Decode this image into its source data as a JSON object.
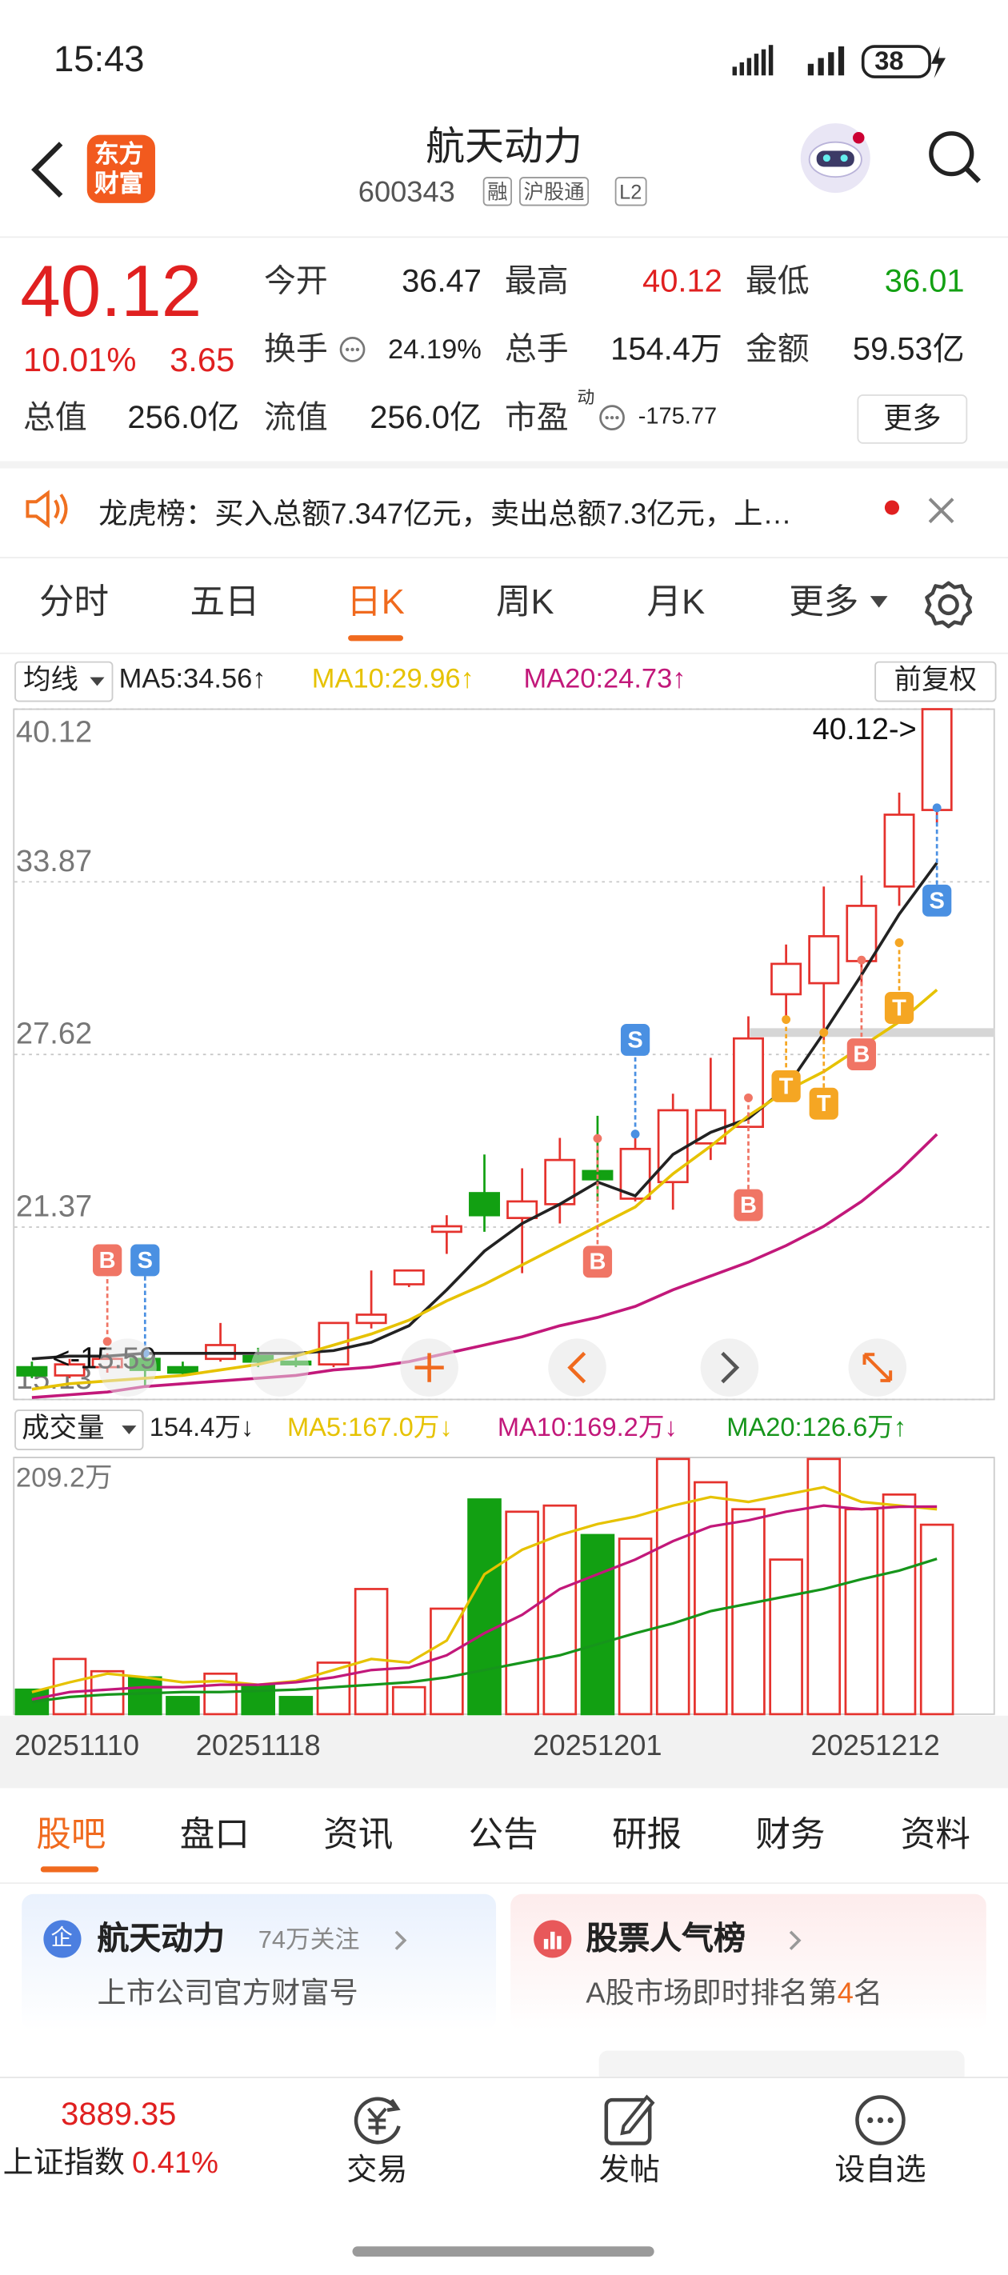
{
  "status_bar": {
    "time": "15:43",
    "battery": "38"
  },
  "header": {
    "logo": [
      "东方",
      "财富"
    ],
    "title": "航天动力",
    "code": "600343",
    "tags": [
      "融",
      "沪股通",
      "L2"
    ]
  },
  "quote": {
    "price": "40.12",
    "change_pct": "10.01%",
    "change": "3.65",
    "fields": [
      {
        "label": "今开",
        "value": "36.47"
      },
      {
        "label": "最高",
        "value": "40.12"
      },
      {
        "label": "最低",
        "value": "36.01"
      },
      {
        "label": "换手",
        "value": "24.19%"
      },
      {
        "label": "总手",
        "value": "154.4万"
      },
      {
        "label": "金额",
        "value": "59.53亿"
      },
      {
        "label": "总值",
        "value": "256.0亿"
      },
      {
        "label": "流值",
        "value": "256.0亿"
      },
      {
        "label": "市盈",
        "value": "-175.77"
      }
    ],
    "pe_sup": "动",
    "more": "更多"
  },
  "notice": "龙虎榜：买入总额7.347亿元，卖出总额7.3亿元，上…",
  "period_tabs": [
    "分时",
    "五日",
    "日K",
    "周K",
    "月K",
    "更多"
  ],
  "kline": {
    "type": "candlestick",
    "ma_selector": "均线",
    "adjust": "前复权",
    "dates": [
      "20251110",
      null,
      null,
      null,
      null,
      null,
      "20251118",
      null,
      null,
      null,
      null,
      null,
      null,
      null,
      null,
      "20251201",
      null,
      null,
      null,
      null,
      null,
      null,
      null,
      null,
      "20251212"
    ],
    "open": [
      16.3,
      16.0,
      16.3,
      16.6,
      16.3,
      16.6,
      16.7,
      16.5,
      16.4,
      17.9,
      19.3,
      21.2,
      22.6,
      21.7,
      22.2,
      23.4,
      22.4,
      23.0,
      24.4,
      25.0,
      29.8,
      30.2,
      31.0,
      33.7,
      36.47
    ],
    "high": [
      16.5,
      16.6,
      16.8,
      16.7,
      16.5,
      17.9,
      17.0,
      16.7,
      17.9,
      19.8,
      19.8,
      21.8,
      24.0,
      23.5,
      24.6,
      25.4,
      24.6,
      26.2,
      27.5,
      29.0,
      31.6,
      33.7,
      34.1,
      37.1,
      40.12
    ],
    "low": [
      15.9,
      15.9,
      16.1,
      15.59,
      16.0,
      16.5,
      16.3,
      16.3,
      16.3,
      17.7,
      19.2,
      20.4,
      21.2,
      19.7,
      21.5,
      22.3,
      22.3,
      22.0,
      23.8,
      25.0,
      29.0,
      28.0,
      30.1,
      33.0,
      36.01
    ],
    "close": [
      16.0,
      16.4,
      16.6,
      16.2,
      16.1,
      17.1,
      16.5,
      16.4,
      17.9,
      18.2,
      19.8,
      21.4,
      21.8,
      22.3,
      23.8,
      23.1,
      24.2,
      25.6,
      25.6,
      28.2,
      30.9,
      31.9,
      33.0,
      36.3,
      40.12
    ],
    "up_color": "#e5322d",
    "down_color": "#12a012",
    "ma": [
      {
        "label": "MA5:34.56↑",
        "color": "#222222",
        "values": [
          16.6,
          16.7,
          16.7,
          16.8,
          16.8,
          16.8,
          16.8,
          16.8,
          16.9,
          17.2,
          17.8,
          19.1,
          20.5,
          21.5,
          22.2,
          23.0,
          22.5,
          24.0,
          24.8,
          25.3,
          26.4,
          28.4,
          30.5,
          32.7,
          34.56
        ]
      },
      {
        "label": "MA10:29.96↑",
        "color": "#e6c200",
        "values": [
          15.5,
          15.7,
          15.8,
          15.9,
          16.0,
          16.2,
          16.4,
          16.7,
          17.1,
          17.5,
          18.0,
          18.7,
          19.3,
          20.0,
          20.7,
          21.4,
          22.1,
          23.3,
          24.3,
          25.4,
          26.3,
          27.0,
          27.9,
          28.8,
          29.96
        ]
      },
      {
        "label": "MA20:24.73↑",
        "color": "#c2187a",
        "values": [
          15.2,
          15.3,
          15.4,
          15.6,
          15.7,
          15.8,
          15.9,
          16.0,
          16.2,
          16.3,
          16.5,
          16.8,
          17.1,
          17.4,
          17.8,
          18.1,
          18.5,
          19.1,
          19.6,
          20.1,
          20.7,
          21.4,
          22.3,
          23.4,
          24.73
        ]
      }
    ],
    "ylim": [
      15.13,
      40.12
    ],
    "yticks": [
      40.12,
      33.87,
      27.62,
      21.37,
      15.13
    ],
    "annotations": {
      "high": "40.12->",
      "low": "<-15.59"
    },
    "signals": [
      "B",
      "S",
      "B",
      "S",
      "B",
      "T",
      "T",
      "B",
      "T",
      "S"
    ],
    "volume": {
      "selector": "成交量",
      "legend": "154.4万↓",
      "values": [
        20,
        45,
        35,
        30,
        14,
        33,
        24,
        14,
        42,
        102,
        22,
        86,
        175,
        165,
        170,
        146,
        143,
        208,
        189,
        167,
        126,
        208,
        167,
        179,
        154.4
      ],
      "ylim": [
        0,
        209.2
      ],
      "yticks": [
        {
          "value": 209.2,
          "label": "209.2万"
        }
      ],
      "ma": [
        {
          "label": "MA5:167.0万↓",
          "color": "#e6c200",
          "values": [
            18,
            26,
            33,
            30,
            26,
            27,
            24,
            27,
            36,
            45,
            42,
            60,
            114,
            134,
            146,
            155,
            161,
            170,
            177,
            173,
            179,
            185,
            173,
            170,
            167.0
          ]
        },
        {
          "label": "MA10:169.2万↓",
          "color": "#c2187a",
          "values": [
            12,
            18,
            20,
            22,
            22,
            24,
            24,
            26,
            30,
            36,
            38,
            48,
            66,
            81,
            102,
            114,
            126,
            141,
            153,
            158,
            165,
            170,
            167,
            169,
            169.2
          ]
        },
        {
          "label": "MA20:126.6万↑",
          "color": "#16951b",
          "values": [
            10,
            14,
            16,
            17,
            18,
            18,
            19,
            20,
            22,
            24,
            26,
            30,
            36,
            42,
            48,
            57,
            66,
            74,
            84,
            90,
            96,
            102,
            110,
            117,
            126.6
          ]
        }
      ]
    }
  },
  "bottom_tabs": [
    "股吧",
    "盘口",
    "资讯",
    "公告",
    "研报",
    "财务",
    "资料"
  ],
  "cards": [
    {
      "icon": "企",
      "title": "航天动力",
      "meta": "74万关注",
      "subtitle": "上市公司官方财富号"
    },
    {
      "title": "股票人气榜",
      "subtitle_prefix": "A股市场即时排名第",
      "subtitle_rank": "4",
      "subtitle_suffix": "名"
    }
  ],
  "nav": {
    "index_value": "3889.35",
    "index_name": "上证指数",
    "index_change": "0.41%",
    "items": [
      "交易",
      "发帖",
      "设自选"
    ]
  }
}
